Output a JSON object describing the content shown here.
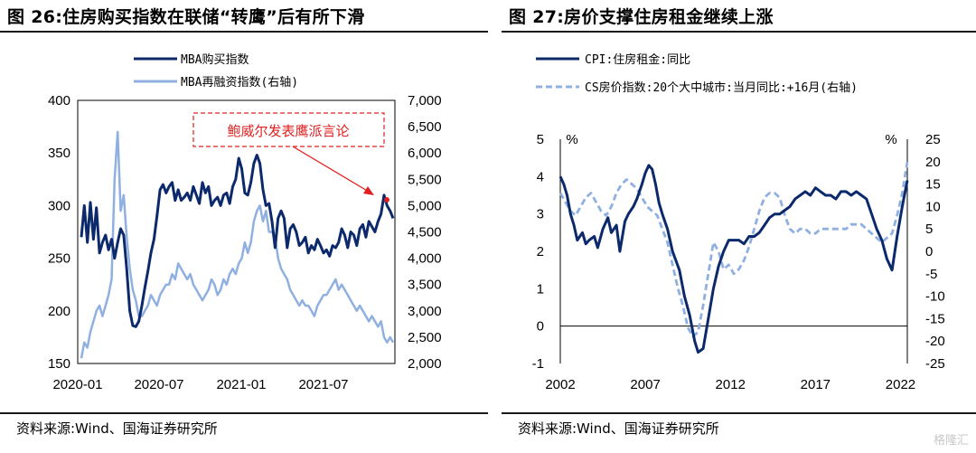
{
  "left": {
    "title": "图 26:住房购买指数在联储“转鹰”后有所下滑",
    "source": "资料来源:Wind、国海证券研究所",
    "chart_data": {
      "type": "line",
      "xlabels": [
        "2020-01",
        "2020-07",
        "2021-01",
        "2021-07"
      ],
      "ylim_left": [
        150,
        400
      ],
      "yticks_left": [
        "400",
        "350",
        "300",
        "250",
        "200",
        "150"
      ],
      "ylim_right": [
        2000,
        7000
      ],
      "yticks_right": [
        "7,000",
        "6,500",
        "6,000",
        "5,500",
        "5,000",
        "4,500",
        "4,000",
        "3,500",
        "3,000",
        "2,500",
        "2,000"
      ],
      "annotation": "鲍威尔发表鹰派言论",
      "series": [
        {
          "name": "MBA购买指数",
          "axis": "left",
          "color": "#0c2a6b",
          "values": [
            270,
            300,
            265,
            303,
            268,
            298,
            255,
            265,
            272,
            258,
            268,
            250,
            265,
            278,
            272,
            240,
            200,
            186,
            185,
            190,
            205,
            222,
            238,
            255,
            268,
            290,
            315,
            320,
            312,
            318,
            322,
            305,
            315,
            305,
            308,
            312,
            305,
            318,
            310,
            302,
            322,
            312,
            318,
            300,
            305,
            308,
            300,
            310,
            312,
            302,
            318,
            325,
            345,
            335,
            312,
            310,
            322,
            340,
            348,
            340,
            315,
            300,
            302,
            285,
            260,
            288,
            295,
            288,
            260,
            278,
            282,
            275,
            262,
            265,
            270,
            255,
            262,
            258,
            268,
            262,
            255,
            258,
            252,
            262,
            260,
            265,
            278,
            272,
            260,
            275,
            272,
            262,
            278,
            282,
            270,
            285,
            280,
            275,
            285,
            292,
            310,
            300,
            295,
            288
          ]
        },
        {
          "name": "MBA再融资指数(右轴)",
          "axis": "right",
          "color": "#8fb0e0",
          "values": [
            2100,
            2400,
            2300,
            2600,
            2800,
            3000,
            3100,
            2900,
            3100,
            3300,
            3600,
            5500,
            6400,
            4900,
            5200,
            4400,
            3800,
            3400,
            3200,
            2900,
            2900,
            3000,
            3100,
            3300,
            3200,
            3100,
            3300,
            3400,
            3500,
            3500,
            3700,
            3600,
            3900,
            3800,
            3700,
            3600,
            3700,
            3500,
            3400,
            3300,
            3200,
            3300,
            3400,
            3600,
            3500,
            3300,
            3400,
            3600,
            3500,
            3700,
            3800,
            3700,
            3900,
            4000,
            4300,
            4100,
            4300,
            4700,
            4900,
            5000,
            4700,
            4900,
            4500,
            4500,
            4400,
            4000,
            3800,
            3700,
            3600,
            3400,
            3300,
            3200,
            3100,
            3200,
            3100,
            3100,
            3000,
            2900,
            3100,
            3200,
            3300,
            3300,
            3400,
            3500,
            3600,
            3400,
            3500,
            3400,
            3300,
            3200,
            3100,
            3000,
            3100,
            3000,
            2900,
            2800,
            2900,
            2800,
            2700,
            2800,
            2500,
            2400,
            2500,
            2400
          ]
        }
      ]
    }
  },
  "right": {
    "title": "图 27:房价支撑住房租金继续上涨",
    "source": "资料来源:Wind、国海证券研究所",
    "chart_data": {
      "type": "line",
      "xlabels": [
        "2002",
        "2007",
        "2012",
        "2017",
        "2022"
      ],
      "ylim_left": [
        -1,
        5
      ],
      "yticks_left": [
        "5",
        "4",
        "3",
        "2",
        "1",
        "0",
        "-1"
      ],
      "ylim_right": [
        -25,
        25
      ],
      "yticks_right": [
        "25",
        "20",
        "15",
        "10",
        "5",
        "0",
        "-5",
        "-10",
        "-15",
        "-20",
        "-25"
      ],
      "left_unit": "%",
      "right_unit": "%",
      "series": [
        {
          "name": "CPI:住房租金:同比",
          "axis": "left",
          "color": "#0c2a6b",
          "x": [
            2002.0,
            2002.2,
            2002.4,
            2002.6,
            2002.8,
            2003.0,
            2003.3,
            2003.5,
            2003.7,
            2004.0,
            2004.2,
            2004.5,
            2004.8,
            2005.0,
            2005.3,
            2005.5,
            2005.8,
            2006.0,
            2006.3,
            2006.5,
            2006.8,
            2007.0,
            2007.2,
            2007.4,
            2007.6,
            2007.8,
            2008.0,
            2008.3,
            2008.6,
            2009.0,
            2009.3,
            2009.6,
            2009.9,
            2010.1,
            2010.4,
            2010.7,
            2011.0,
            2011.3,
            2011.6,
            2011.9,
            2012.2,
            2012.5,
            2012.8,
            2013.1,
            2013.4,
            2013.7,
            2014.0,
            2014.3,
            2014.6,
            2014.9,
            2015.2,
            2015.5,
            2015.8,
            2016.1,
            2016.4,
            2016.7,
            2017.0,
            2017.3,
            2017.6,
            2017.9,
            2018.2,
            2018.5,
            2018.8,
            2019.1,
            2019.4,
            2019.7,
            2020.0,
            2020.3,
            2020.6,
            2020.9,
            2021.2,
            2021.5,
            2021.8,
            2022.1,
            2022.4
          ],
          "values": [
            4.0,
            3.8,
            3.5,
            3.0,
            2.7,
            2.3,
            2.5,
            2.2,
            2.3,
            2.4,
            2.1,
            2.6,
            2.9,
            2.5,
            2.7,
            2.0,
            2.8,
            3.0,
            3.2,
            3.4,
            3.8,
            4.1,
            4.3,
            4.2,
            3.8,
            3.3,
            3.0,
            2.6,
            2.0,
            1.5,
            0.8,
            0.3,
            -0.4,
            -0.7,
            -0.6,
            0.2,
            1.0,
            1.6,
            2.0,
            2.3,
            2.3,
            2.3,
            2.2,
            2.4,
            2.4,
            2.5,
            2.7,
            2.9,
            3.0,
            3.0,
            3.1,
            3.2,
            3.4,
            3.5,
            3.6,
            3.5,
            3.7,
            3.6,
            3.5,
            3.5,
            3.4,
            3.6,
            3.6,
            3.5,
            3.6,
            3.5,
            3.4,
            3.0,
            2.6,
            2.3,
            1.8,
            1.5,
            2.4,
            3.2,
            3.9
          ]
        },
        {
          "name": "CS房价指数:20个大中城市:当月同比:+16月(右轴)",
          "axis": "right",
          "color": "#8fb0e0",
          "x": [
            2002.0,
            2002.3,
            2002.6,
            2002.9,
            2003.2,
            2003.5,
            2003.8,
            2004.1,
            2004.4,
            2004.7,
            2005.0,
            2005.3,
            2005.6,
            2005.9,
            2006.2,
            2006.5,
            2006.8,
            2007.1,
            2007.4,
            2007.7,
            2008.0,
            2008.3,
            2008.6,
            2008.9,
            2009.2,
            2009.5,
            2009.8,
            2010.1,
            2010.4,
            2010.7,
            2011.0,
            2011.3,
            2011.6,
            2011.9,
            2012.2,
            2012.5,
            2012.8,
            2013.1,
            2013.4,
            2013.7,
            2014.0,
            2014.3,
            2014.6,
            2014.9,
            2015.2,
            2015.5,
            2015.8,
            2016.1,
            2016.4,
            2016.7,
            2017.0,
            2017.3,
            2017.6,
            2017.9,
            2018.2,
            2018.5,
            2018.8,
            2019.1,
            2019.4,
            2019.7,
            2020.0,
            2020.3,
            2020.6,
            2020.9,
            2021.2,
            2021.5,
            2021.8,
            2022.1,
            2022.4
          ],
          "values": [
            13,
            11,
            9,
            8,
            10,
            12,
            13,
            11,
            9,
            8,
            10,
            13,
            15,
            16,
            15,
            14,
            12,
            10,
            9,
            8,
            5,
            2,
            -3,
            -8,
            -12,
            -17,
            -19,
            -18,
            -12,
            -5,
            2,
            0,
            -4,
            -3,
            -5,
            -4,
            -2,
            1,
            5,
            9,
            12,
            13,
            13,
            12,
            8,
            5,
            4,
            5,
            5,
            4,
            4,
            5,
            5,
            5,
            5,
            5,
            5,
            6,
            6,
            6,
            5,
            4,
            3,
            2,
            3,
            4,
            8,
            13,
            20
          ]
        }
      ]
    }
  },
  "watermark": "格隆汇"
}
